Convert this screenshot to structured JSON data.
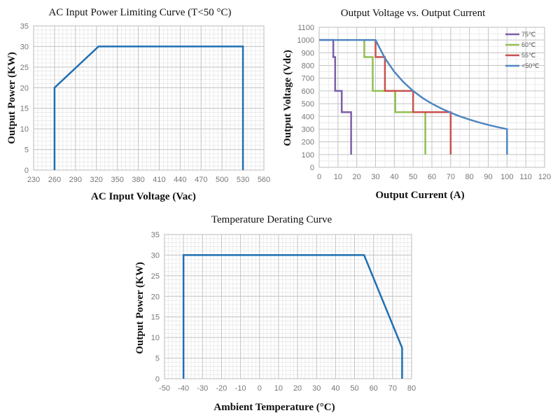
{
  "chart_data": [
    {
      "type": "line",
      "title": "AC Input Power Limiting Curve (T<50 °C)",
      "xlabel": "AC Input Voltage (Vac)",
      "ylabel": "Output Power (KW)",
      "xlim": [
        230,
        560
      ],
      "ylim": [
        0,
        35
      ],
      "xticks": [
        230,
        260,
        290,
        320,
        350,
        380,
        410,
        440,
        470,
        500,
        530,
        560
      ],
      "yticks": [
        0,
        5,
        10,
        15,
        20,
        25,
        30,
        35
      ],
      "grid": true,
      "series": [
        {
          "color": "#1f6fb2",
          "x": [
            260,
            260,
            323,
            530,
            530
          ],
          "y": [
            0,
            20,
            30,
            30,
            0
          ]
        }
      ]
    },
    {
      "type": "line",
      "title": "Output Voltage vs. Output Current",
      "xlabel": "Output Current (A)",
      "ylabel": "Output Voltage (Vdc)",
      "xlim": [
        0,
        120
      ],
      "ylim": [
        0,
        1100
      ],
      "xticks": [
        0,
        10,
        20,
        30,
        40,
        50,
        60,
        70,
        80,
        90,
        100,
        110,
        120
      ],
      "yticks": [
        0,
        100,
        200,
        300,
        400,
        500,
        600,
        700,
        800,
        900,
        1000,
        1100
      ],
      "grid": true,
      "legend": "top-right",
      "series": [
        {
          "name": "75℃",
          "color": "#7d5ea8",
          "x": [
            0,
            7.5,
            7.5,
            8.5,
            8.5,
            12,
            12,
            17,
            17
          ],
          "y": [
            1000,
            1000,
            866,
            866,
            600,
            600,
            433,
            433,
            100
          ]
        },
        {
          "name": "60℃",
          "color": "#92c050",
          "x": [
            24,
            24,
            28.5,
            28.5,
            40.5,
            40.5,
            56.5,
            56.5
          ],
          "y": [
            1000,
            866,
            866,
            600,
            600,
            433,
            433,
            100
          ]
        },
        {
          "name": "55℃",
          "color": "#c8504d",
          "x": [
            30,
            30,
            35,
            35,
            50,
            50,
            70,
            70
          ],
          "y": [
            1000,
            866,
            866,
            600,
            600,
            433,
            433,
            100
          ]
        },
        {
          "name": "<50℃",
          "color": "#4f86c0",
          "x": [
            0,
            30,
            35,
            40,
            45,
            50,
            55,
            60,
            65,
            70,
            75,
            80,
            85,
            90,
            95,
            100,
            100
          ],
          "y": [
            1000,
            1000,
            857,
            750,
            667,
            600,
            545,
            500,
            462,
            429,
            400,
            375,
            353,
            333,
            316,
            300,
            100
          ]
        }
      ]
    },
    {
      "type": "line",
      "title": "Temperature Derating Curve",
      "xlabel": "Ambient Temperature (°C)",
      "ylabel": "Output Power (KW)",
      "xlim": [
        -50,
        80
      ],
      "ylim": [
        0,
        35
      ],
      "xticks": [
        -50,
        -40,
        -30,
        -20,
        -10,
        0,
        10,
        20,
        30,
        40,
        50,
        60,
        70,
        80
      ],
      "yticks": [
        0,
        5,
        10,
        15,
        20,
        25,
        30,
        35
      ],
      "grid": true,
      "series": [
        {
          "color": "#1f6fb2",
          "x": [
            -40,
            -40,
            55,
            75,
            75
          ],
          "y": [
            0,
            30,
            30,
            7.5,
            0
          ]
        }
      ]
    }
  ]
}
